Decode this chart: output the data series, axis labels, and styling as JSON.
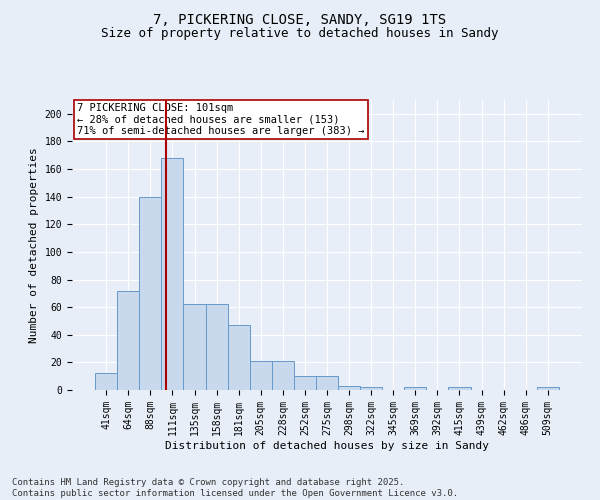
{
  "title": "7, PICKERING CLOSE, SANDY, SG19 1TS",
  "subtitle": "Size of property relative to detached houses in Sandy",
  "xlabel": "Distribution of detached houses by size in Sandy",
  "ylabel": "Number of detached properties",
  "bar_color": "#c8d9ee",
  "bar_edge_color": "#6699cc",
  "categories": [
    "41sqm",
    "64sqm",
    "88sqm",
    "111sqm",
    "135sqm",
    "158sqm",
    "181sqm",
    "205sqm",
    "228sqm",
    "252sqm",
    "275sqm",
    "298sqm",
    "322sqm",
    "345sqm",
    "369sqm",
    "392sqm",
    "415sqm",
    "439sqm",
    "462sqm",
    "486sqm",
    "509sqm"
  ],
  "values": [
    12,
    72,
    140,
    168,
    62,
    62,
    47,
    21,
    21,
    10,
    10,
    3,
    2,
    0,
    2,
    0,
    2,
    0,
    0,
    0,
    2
  ],
  "vline_x": 2.72,
  "vline_color": "#aa0000",
  "annotation_text": "7 PICKERING CLOSE: 101sqm\n← 28% of detached houses are smaller (153)\n71% of semi-detached houses are larger (383) →",
  "annotation_box_color": "white",
  "annotation_box_edge": "#aa0000",
  "ylim": [
    0,
    210
  ],
  "yticks": [
    0,
    20,
    40,
    60,
    80,
    100,
    120,
    140,
    160,
    180,
    200
  ],
  "background_color": "#e8eef8",
  "grid_color": "#ffffff",
  "footer_text": "Contains HM Land Registry data © Crown copyright and database right 2025.\nContains public sector information licensed under the Open Government Licence v3.0.",
  "title_fontsize": 10,
  "subtitle_fontsize": 9,
  "axis_label_fontsize": 8,
  "tick_fontsize": 7,
  "annotation_fontsize": 7.5,
  "footer_fontsize": 6.5
}
